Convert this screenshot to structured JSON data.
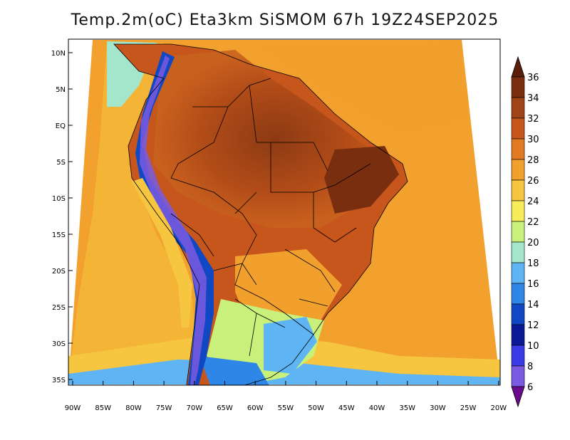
{
  "title": "Temp.2m(oC) Eta3km SiSMOM 67h 19Z24SEP2025",
  "map": {
    "lat_ticks": [
      "10N",
      "5N",
      "EQ",
      "5S",
      "10S",
      "15S",
      "20S",
      "25S",
      "30S",
      "35S"
    ],
    "lon_ticks": [
      "90W",
      "85W",
      "80W",
      "75W",
      "70W",
      "65W",
      "60W",
      "55W",
      "50W",
      "45W",
      "40W",
      "35W",
      "30W",
      "25W",
      "20W"
    ]
  },
  "colorbar": {
    "labels": [
      "36",
      "34",
      "32",
      "30",
      "28",
      "26",
      "24",
      "22",
      "20",
      "18",
      "16",
      "14",
      "12",
      "10",
      "8",
      "6"
    ],
    "colors": [
      "#5a1e0a",
      "#7a2e10",
      "#9e4418",
      "#c6561c",
      "#e07b24",
      "#f1a02e",
      "#f6c640",
      "#f7ec5c",
      "#c9f07a",
      "#a4e6cc",
      "#5fb4f4",
      "#2e86e6",
      "#1048c4",
      "#0a1a96",
      "#3a3ae6",
      "#7a5ae0",
      "#9e42c6",
      "#6a0a8c"
    ]
  }
}
